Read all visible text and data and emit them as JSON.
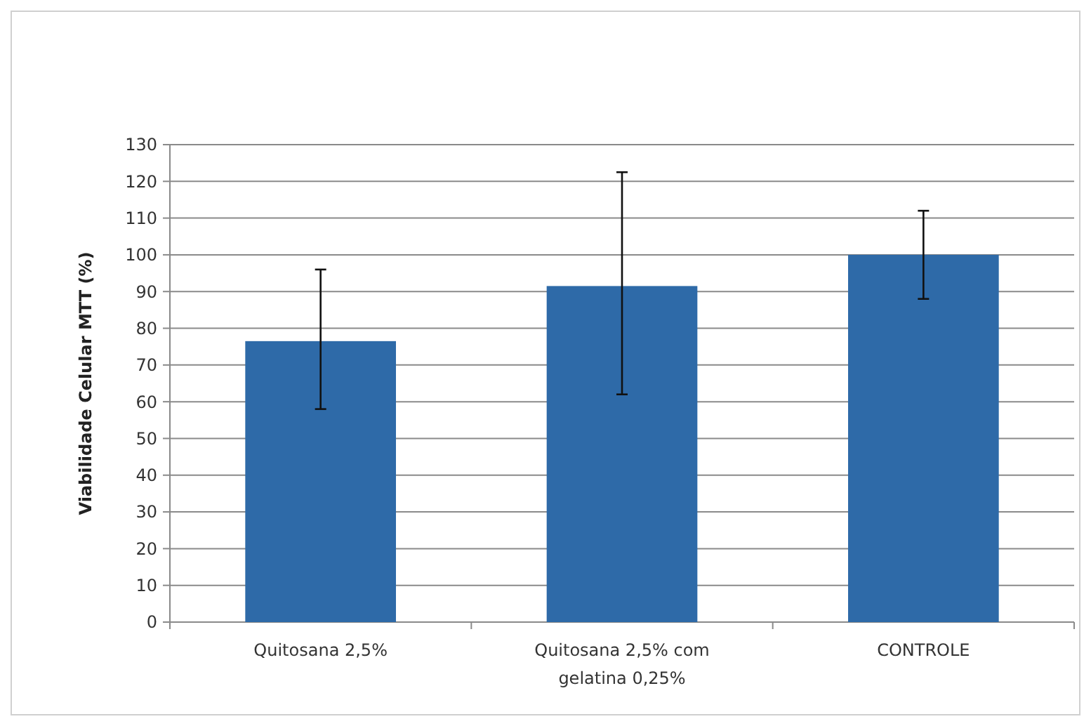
{
  "chart_data": {
    "type": "bar",
    "ylabel": "Viabilidade Celular MTT (%)",
    "categories": [
      "Quitosana 2,5%",
      "Quitosana 2,5% com gelatina 0,25%",
      "CONTROLE"
    ],
    "values": [
      76.5,
      91.5,
      100
    ],
    "color": "#2e6aa8",
    "errors": [
      [
        58,
        96
      ],
      [
        62,
        122.5
      ],
      [
        88,
        112
      ]
    ],
    "ylim": [
      0,
      130
    ],
    "yticks": [
      0,
      10,
      20,
      30,
      40,
      50,
      60,
      70,
      80,
      90,
      100,
      110,
      120,
      130
    ],
    "grid": "y"
  }
}
